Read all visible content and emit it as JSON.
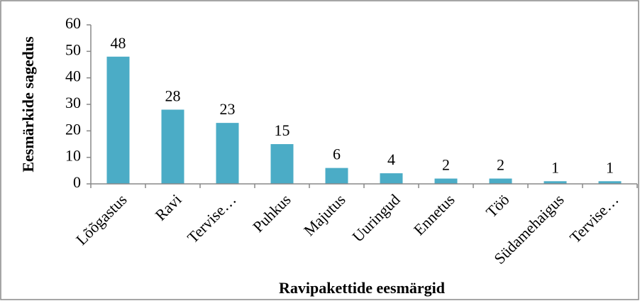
{
  "chart_data": {
    "type": "bar",
    "x_label": "Ravipakettide eesmärgid",
    "y_label": "Eesmärkide sagedus",
    "categories": [
      "Lõõgastus",
      "Ravi",
      "Tervise…",
      "Puhkus",
      "Majutus",
      "Uuringud",
      "Ennetus",
      "Töö",
      "Südamehaigus",
      "Tervise…"
    ],
    "values": [
      48,
      28,
      23,
      15,
      6,
      4,
      2,
      2,
      1,
      1
    ],
    "color": "#4bacc6",
    "ylim": [
      0,
      60
    ],
    "yticks": [
      0,
      10,
      20,
      30,
      40,
      50,
      60
    ],
    "grid": false
  }
}
